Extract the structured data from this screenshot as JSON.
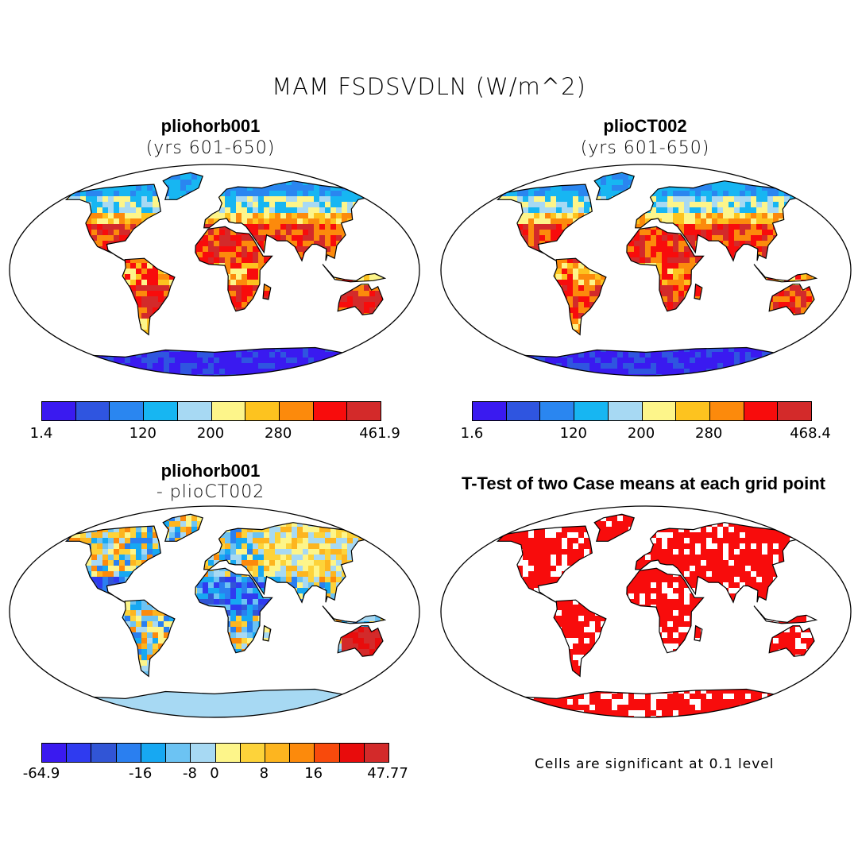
{
  "title": "MAM FSDSVDLN (W/m^2)",
  "panels": [
    {
      "id": "p1",
      "title": "pliohorb001",
      "subtitle": "(yrs 601-650)"
    },
    {
      "id": "p2",
      "title": "plioCT002",
      "subtitle": "(yrs 601-650)"
    },
    {
      "id": "p3",
      "title": "pliohorb001",
      "subtitle": "- plioCT002"
    },
    {
      "id": "p4",
      "title": "T-Test of two Case means at each grid point",
      "subtitle": ""
    }
  ],
  "colorbars": [
    {
      "id": "cb1",
      "labels": [
        "1.4",
        "120",
        "200",
        "280",
        "461.9"
      ],
      "colors": [
        "#3a1af0",
        "#2f55e0",
        "#2a86f0",
        "#17b6f2",
        "#a7d9f3",
        "#fdf58a",
        "#fdc31f",
        "#fc8a0c",
        "#f80c0c",
        "#d32a2a"
      ]
    },
    {
      "id": "cb2",
      "labels": [
        "1.6",
        "120",
        "200",
        "280",
        "468.4"
      ],
      "colors": [
        "#3a1af0",
        "#2f55e0",
        "#2a86f0",
        "#17b6f2",
        "#a7d9f3",
        "#fdf58a",
        "#fdc31f",
        "#fc8a0c",
        "#f80c0c",
        "#d32a2a"
      ]
    },
    {
      "id": "cb3",
      "labels": [
        "-64.9",
        "-16",
        "-8",
        "0",
        "8",
        "16",
        "47.77"
      ],
      "colors": [
        "#3a1af0",
        "#2f3bf0",
        "#3155d6",
        "#2a7ff0",
        "#17a8f2",
        "#6cc3f3",
        "#a7d9f3",
        "#fdf58a",
        "#fdd33a",
        "#fdb51f",
        "#fc8a0c",
        "#f84a0c",
        "#e80c0c",
        "#d32a2a"
      ]
    }
  ],
  "note": "Cells are significant at 0.1 level",
  "field_colors": {
    "cold": "#3a1af0",
    "cool": "#17b6f2",
    "mild": "#fdc31f",
    "warm": "#fc8a0c",
    "hot": "#d32a2a",
    "diff_pos": "#d32a2a",
    "diff_neg": "#2f3bf0",
    "diff_zero": "#a7d9f3",
    "significant": "#f80c0c"
  }
}
